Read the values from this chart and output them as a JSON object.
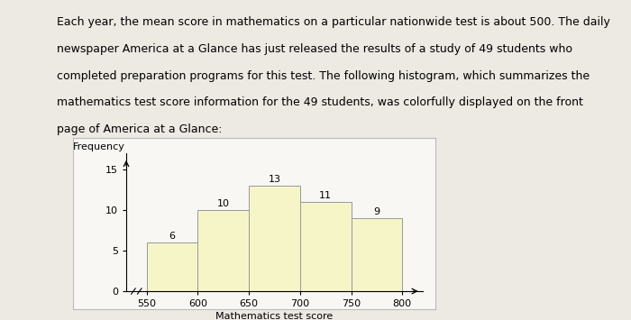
{
  "bin_edges": [
    550,
    600,
    650,
    700,
    750,
    800
  ],
  "frequencies": [
    6,
    10,
    13,
    11,
    9
  ],
  "bar_color": "#f5f5c8",
  "bar_edgecolor": "#999999",
  "xlabel": "Mathematics test score",
  "ylabel": "Frequency",
  "yticks": [
    0,
    5,
    10,
    15
  ],
  "xticks": [
    550,
    600,
    650,
    700,
    750,
    800
  ],
  "ylim": [
    0,
    17
  ],
  "xlim": [
    530,
    820
  ],
  "bg_color": "#ede9e3",
  "chart_bg": "#f8f7f4",
  "box_facecolor": "#f8f8f0",
  "fontsize_axis_label": 8,
  "fontsize_tick": 8,
  "fontsize_bar_label": 8,
  "fontsize_paragraph": 9,
  "lines": [
    "Each year, the mean score in mathematics on a particular nationwide test is about 500. The daily",
    "newspaper America at a Glance has just released the results of a study of 49 students who",
    "completed preparation programs for this test. The following histogram, which summarizes the",
    "mathematics test score information for the 49 students, was colorfully displayed on the front",
    "page of America at a Glance:"
  ]
}
